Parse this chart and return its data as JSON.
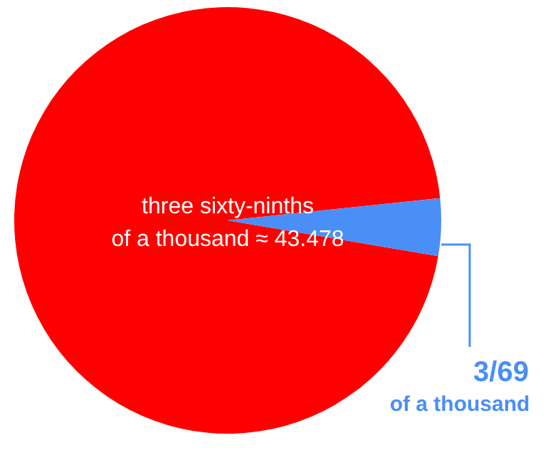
{
  "chart_data": {
    "type": "pie",
    "categories": [
      null,
      null
    ],
    "values": [
      95.652,
      4.348
    ],
    "colors": [
      "#ff0000",
      "#4a8ef8"
    ],
    "annotations": [
      "three sixty-ninths",
      "of a thousand ≈ 43.478",
      "3/69",
      "of a thousand"
    ]
  }
}
